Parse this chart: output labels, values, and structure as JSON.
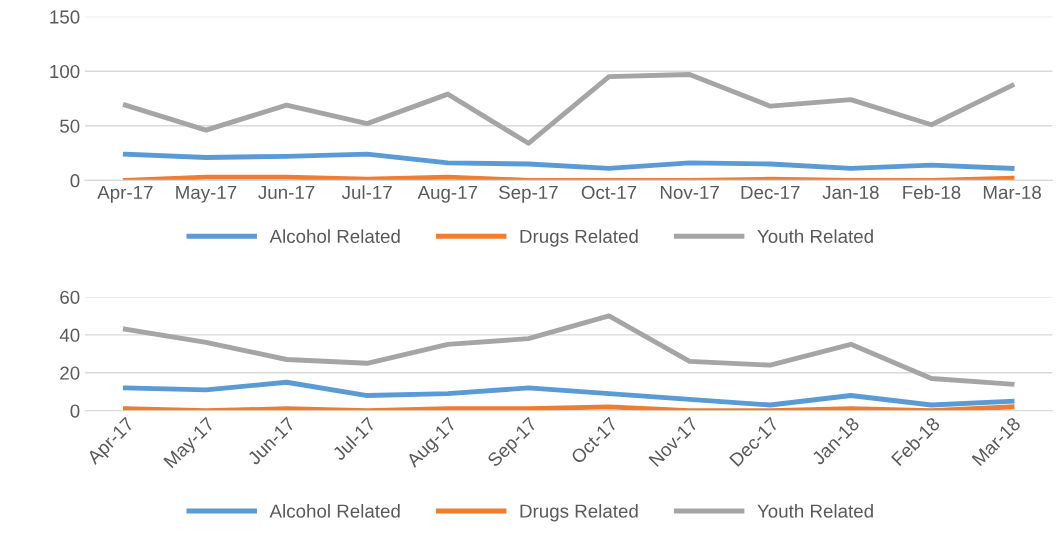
{
  "chart_data": [
    {
      "type": "line",
      "categories": [
        "Apr-17",
        "May-17",
        "Jun-17",
        "Jul-17",
        "Aug-17",
        "Sep-17",
        "Oct-17",
        "Nov-17",
        "Dec-17",
        "Jan-18",
        "Feb-18",
        "Mar-18"
      ],
      "ylim": [
        0,
        150
      ],
      "yticks": [
        0,
        50,
        100,
        150
      ],
      "grid": "y",
      "legend": "bottom",
      "marker": "none",
      "line_style": "solid",
      "series": [
        {
          "name": "Alcohol Related",
          "color": "#5b9bd5",
          "values": [
            24,
            21,
            22,
            24,
            16,
            15,
            11,
            16,
            15,
            11,
            14,
            11
          ]
        },
        {
          "name": "Drugs Related",
          "color": "#ed7d31",
          "values": [
            0,
            3,
            3,
            1,
            3,
            0,
            0,
            0,
            1,
            0,
            0,
            2
          ]
        },
        {
          "name": "Youth Related",
          "color": "#a5a5a5",
          "values": [
            69,
            46,
            69,
            52,
            79,
            34,
            95,
            97,
            68,
            74,
            51,
            87
          ]
        }
      ]
    },
    {
      "type": "line",
      "categories": [
        "Apr-17",
        "May-17",
        "Jun-17",
        "Jul-17",
        "Aug-17",
        "Sep-17",
        "Oct-17",
        "Nov-17",
        "Dec-17",
        "Jan-18",
        "Feb-18",
        "Mar-18"
      ],
      "ylim": [
        0,
        60
      ],
      "yticks": [
        0,
        20,
        40,
        60
      ],
      "grid": "y",
      "legend": "bottom",
      "marker": "none",
      "line_style": "solid",
      "series": [
        {
          "name": "Alcohol Related",
          "color": "#5b9bd5",
          "values": [
            12,
            11,
            15,
            8,
            9,
            12,
            9,
            6,
            3,
            8,
            3,
            5
          ]
        },
        {
          "name": "Drugs Related",
          "color": "#ed7d31",
          "values": [
            1,
            0,
            1,
            0,
            1,
            1,
            2,
            0,
            0,
            1,
            0,
            2
          ]
        },
        {
          "name": "Youth Related",
          "color": "#a5a5a5",
          "values": [
            43,
            36,
            27,
            25,
            35,
            38,
            50,
            26,
            24,
            35,
            17,
            14
          ]
        }
      ]
    }
  ]
}
